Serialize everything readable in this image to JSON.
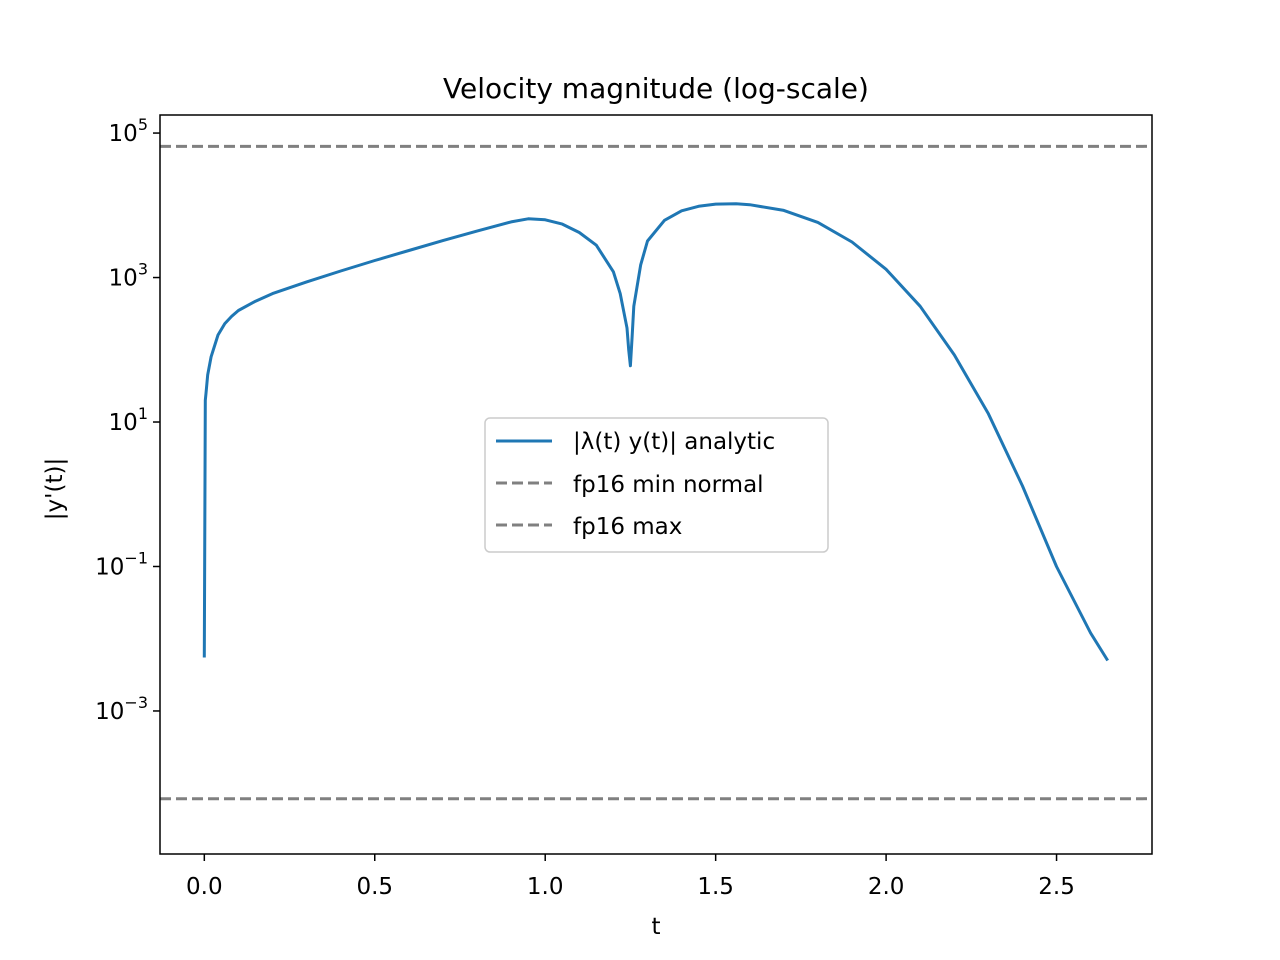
{
  "chart_data": {
    "type": "line",
    "title": "Velocity magnitude (log-scale)",
    "xlabel": "t",
    "ylabel": "|y'(t)|",
    "xlim": [
      -0.13,
      2.78
    ],
    "ylim_log10": [
      -4.98,
      5.25
    ],
    "yscale": "log",
    "grid": false,
    "legend_position": "center",
    "x_ticks": [
      {
        "value": 0.0,
        "label": "0.0"
      },
      {
        "value": 0.5,
        "label": "0.5"
      },
      {
        "value": 1.0,
        "label": "1.0"
      },
      {
        "value": 1.5,
        "label": "1.5"
      },
      {
        "value": 2.0,
        "label": "2.0"
      },
      {
        "value": 2.5,
        "label": "2.5"
      }
    ],
    "y_ticks": [
      {
        "exp": 5,
        "base": "10",
        "sup": "5"
      },
      {
        "exp": 3,
        "base": "10",
        "sup": "3"
      },
      {
        "exp": 1,
        "base": "10",
        "sup": "1"
      },
      {
        "exp": -1,
        "base": "10",
        "sup": "−1"
      },
      {
        "exp": -3,
        "base": "10",
        "sup": "−3"
      }
    ],
    "series": [
      {
        "name": "|λ(t) y(t)| analytic",
        "color": "#1f77b4",
        "style": "solid",
        "x": [
          0.0,
          0.003,
          0.005,
          0.01,
          0.02,
          0.04,
          0.06,
          0.08,
          0.1,
          0.15,
          0.2,
          0.3,
          0.4,
          0.5,
          0.6,
          0.7,
          0.8,
          0.9,
          0.95,
          1.0,
          1.05,
          1.1,
          1.15,
          1.2,
          1.22,
          1.24,
          1.245,
          1.25,
          1.255,
          1.26,
          1.28,
          1.3,
          1.35,
          1.4,
          1.45,
          1.5,
          1.56,
          1.6,
          1.7,
          1.8,
          1.9,
          2.0,
          2.1,
          2.2,
          2.3,
          2.4,
          2.5,
          2.6,
          2.65
        ],
        "y": [
          0.0055,
          20,
          25,
          45,
          80,
          160,
          230,
          290,
          350,
          470,
          600,
          870,
          1230,
          1720,
          2370,
          3250,
          4400,
          5900,
          6500,
          6300,
          5500,
          4200,
          2800,
          1200,
          600,
          200,
          100,
          60,
          150,
          400,
          1500,
          3200,
          6200,
          8400,
          9700,
          10400,
          10500,
          10200,
          8500,
          5800,
          3100,
          1300,
          400,
          85,
          13,
          1.3,
          0.1,
          0.012,
          0.005
        ]
      },
      {
        "name": "fp16 min normal",
        "color": "#808080",
        "style": "dashed",
        "constant_y": 6.1035e-05
      },
      {
        "name": "fp16 max",
        "color": "#808080",
        "style": "dashed",
        "constant_y": 65504
      }
    ]
  }
}
